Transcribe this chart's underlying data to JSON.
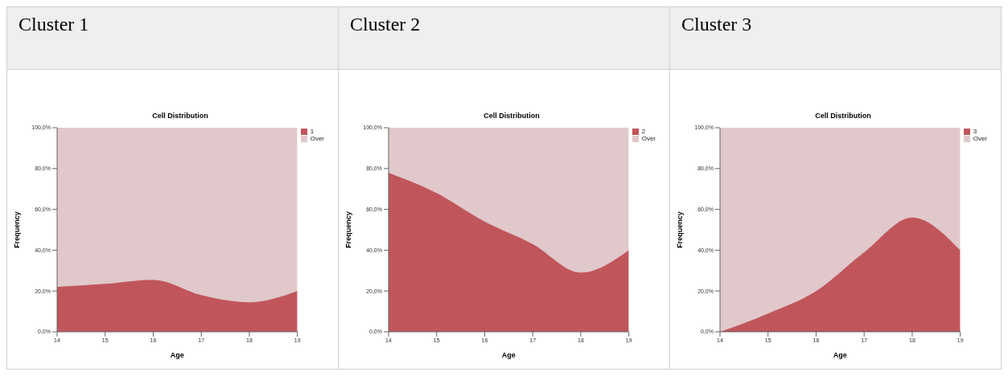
{
  "chart_data": [
    {
      "type": "area",
      "title": "Cluster 1",
      "subtitle": "Cell Distribution",
      "xlabel": "Age",
      "ylabel": "Frequency",
      "stacked": true,
      "legend": "top right",
      "x": [
        14,
        15,
        16,
        17,
        18,
        19
      ],
      "xlim": [
        14,
        19
      ],
      "xticks": [
        14,
        15,
        16,
        17,
        18,
        19
      ],
      "ylim": [
        0,
        100
      ],
      "yticks": [
        {
          "value": 0,
          "label": "0,0%"
        },
        {
          "value": 20,
          "label": "20,0%"
        },
        {
          "value": 40,
          "label": "40,0%"
        },
        {
          "value": 60,
          "label": "60,0%"
        },
        {
          "value": 80,
          "label": "80,0%"
        },
        {
          "value": 100,
          "label": "100,0%"
        }
      ],
      "series": [
        {
          "name": "1",
          "color": "#c0565b",
          "values": [
            22,
            23.5,
            25.5,
            18,
            14.5,
            20
          ]
        },
        {
          "name": "Over",
          "color": "#e0c8cb",
          "values": [
            78,
            76.5,
            74.5,
            82,
            85.5,
            80
          ]
        }
      ]
    },
    {
      "type": "area",
      "title": "Cluster 2",
      "subtitle": "Cell Distribution",
      "xlabel": "Age",
      "ylabel": "Frequency",
      "stacked": true,
      "legend": "top right",
      "x": [
        14,
        15,
        16,
        17,
        18,
        19
      ],
      "xlim": [
        14,
        19
      ],
      "xticks": [
        14,
        15,
        16,
        17,
        18,
        19
      ],
      "ylim": [
        0,
        100
      ],
      "yticks": [
        {
          "value": 0,
          "label": "0,0%"
        },
        {
          "value": 20,
          "label": "20,0%"
        },
        {
          "value": 40,
          "label": "40,0%"
        },
        {
          "value": 60,
          "label": "60,0%"
        },
        {
          "value": 80,
          "label": "80,0%"
        },
        {
          "value": 100,
          "label": "100,0%"
        }
      ],
      "series": [
        {
          "name": "2",
          "color": "#c0565b",
          "values": [
            78,
            68,
            54,
            43,
            29,
            40
          ]
        },
        {
          "name": "Over",
          "color": "#e0c8cb",
          "values": [
            22,
            32,
            46,
            57,
            71,
            60
          ]
        }
      ]
    },
    {
      "type": "area",
      "title": "Cluster 3",
      "subtitle": "Cell Distribution",
      "xlabel": "Age",
      "ylabel": "Frequency",
      "stacked": true,
      "legend": "top right",
      "x": [
        14,
        15,
        16,
        17,
        18,
        19
      ],
      "xlim": [
        14,
        19
      ],
      "xticks": [
        14,
        15,
        16,
        17,
        18,
        19
      ],
      "ylim": [
        0,
        100
      ],
      "yticks": [
        {
          "value": 0,
          "label": "0,0%"
        },
        {
          "value": 20,
          "label": "20,0%"
        },
        {
          "value": 40,
          "label": "40,0%"
        },
        {
          "value": 60,
          "label": "60,0%"
        },
        {
          "value": 80,
          "label": "80,0%"
        },
        {
          "value": 100,
          "label": "100,0%"
        }
      ],
      "series": [
        {
          "name": "3",
          "color": "#c0565b",
          "values": [
            0,
            9,
            20,
            39,
            56,
            40
          ]
        },
        {
          "name": "Over",
          "color": "#e0c8cb",
          "values": [
            100,
            91,
            80,
            61,
            44,
            60
          ]
        }
      ]
    }
  ]
}
